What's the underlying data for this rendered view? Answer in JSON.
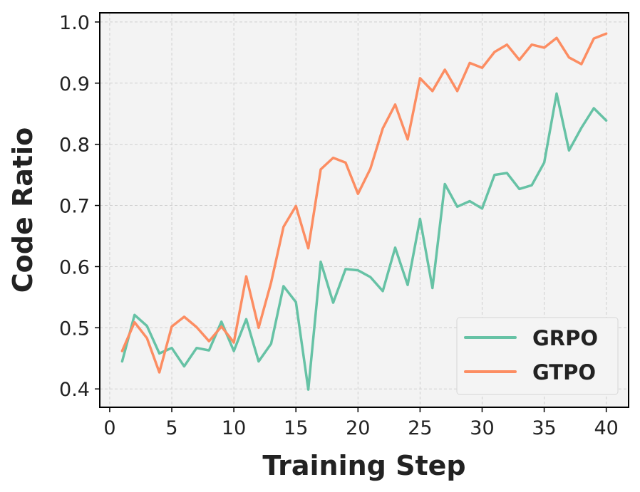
{
  "chart_data": {
    "type": "line",
    "xlabel": "Training Step",
    "ylabel": "Code Ratio",
    "xlim": [
      -0.8,
      41.8
    ],
    "ylim": [
      0.37,
      1.015
    ],
    "xticks": [
      0,
      5,
      10,
      15,
      20,
      25,
      30,
      35,
      40
    ],
    "yticks": [
      0.4,
      0.5,
      0.6,
      0.7,
      0.8,
      0.9,
      1.0
    ],
    "xtick_labels": [
      "0",
      "5",
      "10",
      "15",
      "20",
      "25",
      "30",
      "35",
      "40"
    ],
    "ytick_labels": [
      "0.4",
      "0.5",
      "0.6",
      "0.7",
      "0.8",
      "0.9",
      "1.0"
    ],
    "grid": true,
    "legend_position": "lower-right",
    "x": [
      1,
      2,
      3,
      4,
      5,
      6,
      7,
      8,
      9,
      10,
      11,
      12,
      13,
      14,
      15,
      16,
      17,
      18,
      19,
      20,
      21,
      22,
      23,
      24,
      25,
      26,
      27,
      28,
      29,
      30,
      31,
      32,
      33,
      34,
      35,
      36,
      37,
      38,
      39,
      40
    ],
    "series": [
      {
        "name": "GRPO",
        "color": "#66c2a5",
        "values": [
          0.445,
          0.521,
          0.503,
          0.458,
          0.467,
          0.437,
          0.467,
          0.463,
          0.51,
          0.462,
          0.514,
          0.445,
          0.474,
          0.568,
          0.542,
          0.399,
          0.608,
          0.541,
          0.596,
          0.594,
          0.583,
          0.56,
          0.631,
          0.57,
          0.678,
          0.565,
          0.735,
          0.698,
          0.707,
          0.695,
          0.75,
          0.753,
          0.727,
          0.733,
          0.77,
          0.883,
          0.79,
          0.827,
          0.859,
          0.839
        ]
      },
      {
        "name": "GTPO",
        "color": "#fc8d62",
        "values": [
          0.462,
          0.509,
          0.483,
          0.427,
          0.502,
          0.518,
          0.501,
          0.478,
          0.502,
          0.476,
          0.584,
          0.5,
          0.574,
          0.665,
          0.699,
          0.63,
          0.759,
          0.778,
          0.77,
          0.719,
          0.76,
          0.826,
          0.865,
          0.808,
          0.908,
          0.887,
          0.922,
          0.887,
          0.933,
          0.925,
          0.951,
          0.963,
          0.938,
          0.963,
          0.958,
          0.974,
          0.942,
          0.931,
          0.973,
          0.981
        ]
      }
    ]
  }
}
